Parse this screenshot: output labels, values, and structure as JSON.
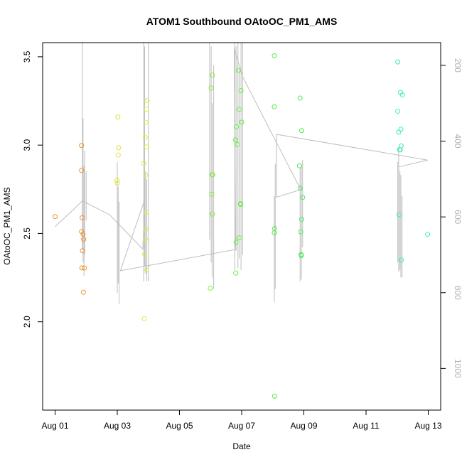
{
  "chart_data": {
    "type": "scatter",
    "title": "ATOM1 Southbound OAtoOC_PM1_AMS",
    "xlabel": "Date",
    "ylabel": "OAtoOC_PM1_AMS",
    "x_ticks": [
      "Aug 01",
      "Aug 03",
      "Aug 05",
      "Aug 07",
      "Aug 09",
      "Aug 11",
      "Aug 13"
    ],
    "y_ticks": [
      "2.0",
      "2.5",
      "3.0",
      "3.5"
    ],
    "y2_ticks": [
      "200",
      "400",
      "600",
      "800",
      "1000"
    ],
    "xlim_days": [
      0.6,
      13.4
    ],
    "ylim": [
      1.5,
      3.58
    ],
    "y2lim": [
      1110,
      140
    ],
    "grid": false,
    "legend": "none",
    "colors": {
      "line": "#bebebe",
      "right_axis": "#b0b0b0"
    },
    "points": [
      {
        "x": 1.0,
        "y": 2.595,
        "color": "#f08a30"
      },
      {
        "x": 1.85,
        "y": 2.998,
        "color": "#f0922f"
      },
      {
        "x": 1.85,
        "y": 2.857,
        "color": "#f0922f"
      },
      {
        "x": 1.87,
        "y": 2.589,
        "color": "#f0922f"
      },
      {
        "x": 1.85,
        "y": 2.511,
        "color": "#f0922f"
      },
      {
        "x": 1.9,
        "y": 2.497,
        "color": "#f0922f"
      },
      {
        "x": 1.92,
        "y": 2.467,
        "color": "#f0922f"
      },
      {
        "x": 1.88,
        "y": 2.402,
        "color": "#f0922f"
      },
      {
        "x": 1.86,
        "y": 2.305,
        "color": "#f0922f"
      },
      {
        "x": 1.94,
        "y": 2.304,
        "color": "#f0922f"
      },
      {
        "x": 1.91,
        "y": 2.167,
        "color": "#f0922f"
      },
      {
        "x": 3.02,
        "y": 3.159,
        "color": "#e0e040"
      },
      {
        "x": 3.04,
        "y": 2.985,
        "color": "#e0e040"
      },
      {
        "x": 3.03,
        "y": 2.944,
        "color": "#e0e040"
      },
      {
        "x": 2.99,
        "y": 2.801,
        "color": "#e0e040"
      },
      {
        "x": 3.0,
        "y": 2.785,
        "color": "#e0e040"
      },
      {
        "x": 3.96,
        "y": 3.252,
        "color": "#dcef45"
      },
      {
        "x": 3.94,
        "y": 3.203,
        "color": "#dcef45"
      },
      {
        "x": 3.92,
        "y": 3.129,
        "color": "#dcef45"
      },
      {
        "x": 3.9,
        "y": 3.044,
        "color": "#dcef45"
      },
      {
        "x": 3.95,
        "y": 2.99,
        "color": "#dcef45"
      },
      {
        "x": 3.85,
        "y": 2.896,
        "color": "#dcef45"
      },
      {
        "x": 3.91,
        "y": 2.832,
        "color": "#dcef45"
      },
      {
        "x": 3.93,
        "y": 2.619,
        "color": "#dcef45"
      },
      {
        "x": 3.92,
        "y": 2.525,
        "color": "#dcef45"
      },
      {
        "x": 3.9,
        "y": 2.467,
        "color": "#dcef45"
      },
      {
        "x": 3.88,
        "y": 2.383,
        "color": "#dcef45"
      },
      {
        "x": 3.94,
        "y": 2.293,
        "color": "#dcef45"
      },
      {
        "x": 3.87,
        "y": 2.018,
        "color": "#dcef45"
      },
      {
        "x": 6.06,
        "y": 3.396,
        "color": "#86ee38"
      },
      {
        "x": 6.02,
        "y": 3.323,
        "color": "#86ee38"
      },
      {
        "x": 6.05,
        "y": 2.833,
        "color": "#86ee38"
      },
      {
        "x": 6.07,
        "y": 2.832,
        "color": "#86ee38"
      },
      {
        "x": 6.04,
        "y": 2.722,
        "color": "#86ee38"
      },
      {
        "x": 6.06,
        "y": 2.61,
        "color": "#86ee38"
      },
      {
        "x": 5.99,
        "y": 2.19,
        "color": "#86ee38"
      },
      {
        "x": 6.9,
        "y": 3.423,
        "color": "#66ee3a"
      },
      {
        "x": 6.98,
        "y": 3.308,
        "color": "#66ee3a"
      },
      {
        "x": 6.92,
        "y": 3.202,
        "color": "#66ee3a"
      },
      {
        "x": 7.0,
        "y": 3.13,
        "color": "#66ee3a"
      },
      {
        "x": 6.83,
        "y": 3.104,
        "color": "#66ee3a"
      },
      {
        "x": 6.8,
        "y": 3.03,
        "color": "#66ee3a"
      },
      {
        "x": 6.86,
        "y": 3.003,
        "color": "#66ee3a"
      },
      {
        "x": 6.96,
        "y": 2.668,
        "color": "#66ee3a"
      },
      {
        "x": 6.97,
        "y": 2.664,
        "color": "#66ee3a"
      },
      {
        "x": 6.92,
        "y": 2.475,
        "color": "#66ee3a"
      },
      {
        "x": 6.82,
        "y": 2.45,
        "color": "#66ee3a"
      },
      {
        "x": 6.81,
        "y": 2.276,
        "color": "#66ee3a"
      },
      {
        "x": 8.05,
        "y": 3.506,
        "color": "#52ec44"
      },
      {
        "x": 8.05,
        "y": 3.217,
        "color": "#52ec44"
      },
      {
        "x": 8.06,
        "y": 2.528,
        "color": "#52ec44"
      },
      {
        "x": 8.05,
        "y": 2.504,
        "color": "#52ec44"
      },
      {
        "x": 8.06,
        "y": 1.579,
        "color": "#52ec44"
      },
      {
        "x": 8.88,
        "y": 3.266,
        "color": "#48ec55"
      },
      {
        "x": 8.93,
        "y": 3.082,
        "color": "#48ec55"
      },
      {
        "x": 8.86,
        "y": 2.883,
        "color": "#48ec55"
      },
      {
        "x": 8.88,
        "y": 2.756,
        "color": "#48ec55"
      },
      {
        "x": 8.96,
        "y": 2.704,
        "color": "#48ec55"
      },
      {
        "x": 8.93,
        "y": 2.58,
        "color": "#48ec55"
      },
      {
        "x": 8.9,
        "y": 2.509,
        "color": "#48ec55"
      },
      {
        "x": 8.91,
        "y": 2.38,
        "color": "#48ec55"
      },
      {
        "x": 8.92,
        "y": 2.375,
        "color": "#48ec55"
      },
      {
        "x": 12.02,
        "y": 3.471,
        "color": "#3aecc0"
      },
      {
        "x": 12.11,
        "y": 3.298,
        "color": "#3aecc0"
      },
      {
        "x": 12.17,
        "y": 3.284,
        "color": "#3aecc0"
      },
      {
        "x": 12.02,
        "y": 3.192,
        "color": "#3aecc0"
      },
      {
        "x": 12.12,
        "y": 3.09,
        "color": "#3aecc0"
      },
      {
        "x": 12.05,
        "y": 3.073,
        "color": "#3aecc0"
      },
      {
        "x": 12.13,
        "y": 2.996,
        "color": "#3aecc0"
      },
      {
        "x": 12.08,
        "y": 2.974,
        "color": "#3aecc0"
      },
      {
        "x": 12.1,
        "y": 2.973,
        "color": "#3aecc0"
      },
      {
        "x": 12.06,
        "y": 2.607,
        "color": "#3aecc0"
      },
      {
        "x": 12.13,
        "y": 2.35,
        "color": "#3aecc0"
      },
      {
        "x": 12.98,
        "y": 2.495,
        "color": "#3aecc0"
      }
    ],
    "track_line": [
      {
        "x": 1.0,
        "y2": 626
      },
      {
        "x": 1.88,
        "y2": 558
      },
      {
        "x": 2.75,
        "y2": 594
      },
      {
        "x": 3.82,
        "y2": 685
      },
      {
        "x": 3.88,
        "y2": 555
      },
      {
        "x": 3.1,
        "y2": 742
      },
      {
        "x": 6.8,
        "y2": 686
      },
      {
        "x": 6.76,
        "y2": 156
      },
      {
        "x": 7.05,
        "y2": 233
      },
      {
        "x": 8.9,
        "y2": 528
      },
      {
        "x": 8.12,
        "y2": 548
      },
      {
        "x": 8.12,
        "y2": 382
      },
      {
        "x": 12.98,
        "y2": 450
      },
      {
        "x": 12.05,
        "y2": 468
      }
    ],
    "track_spikes": [
      {
        "x": 1.88,
        "y2_top": 120,
        "y2_bottom": 685
      },
      {
        "x": 1.9,
        "y2_top": 340,
        "y2_bottom": 720
      },
      {
        "x": 1.93,
        "y2_top": 465,
        "y2_bottom": 755
      },
      {
        "x": 1.95,
        "y2_top": 425,
        "y2_bottom": 700
      },
      {
        "x": 2.0,
        "y2_top": 480,
        "y2_bottom": 610
      },
      {
        "x": 3.0,
        "y2_top": 455,
        "y2_bottom": 800
      },
      {
        "x": 3.03,
        "y2_top": 520,
        "y2_bottom": 775
      },
      {
        "x": 3.06,
        "y2_top": 560,
        "y2_bottom": 830
      },
      {
        "x": 3.85,
        "y2_top": 120,
        "y2_bottom": 770
      },
      {
        "x": 3.88,
        "y2_top": 150,
        "y2_bottom": 730
      },
      {
        "x": 3.91,
        "y2_top": 480,
        "y2_bottom": 750
      },
      {
        "x": 3.95,
        "y2_top": 500,
        "y2_bottom": 770
      },
      {
        "x": 4.0,
        "y2_top": 120,
        "y2_bottom": 770
      },
      {
        "x": 5.97,
        "y2_top": 120,
        "y2_bottom": 660
      },
      {
        "x": 6.02,
        "y2_top": 150,
        "y2_bottom": 720
      },
      {
        "x": 6.05,
        "y2_top": 300,
        "y2_bottom": 760
      },
      {
        "x": 6.1,
        "y2_top": 200,
        "y2_bottom": 790
      },
      {
        "x": 6.78,
        "y2_top": 120,
        "y2_bottom": 740
      },
      {
        "x": 6.82,
        "y2_top": 150,
        "y2_bottom": 690
      },
      {
        "x": 6.88,
        "y2_top": 120,
        "y2_bottom": 735
      },
      {
        "x": 6.92,
        "y2_top": 210,
        "y2_bottom": 710
      },
      {
        "x": 6.98,
        "y2_top": 120,
        "y2_bottom": 740
      },
      {
        "x": 7.03,
        "y2_top": 130,
        "y2_bottom": 700
      },
      {
        "x": 8.05,
        "y2_top": 545,
        "y2_bottom": 825
      },
      {
        "x": 8.08,
        "y2_top": 460,
        "y2_bottom": 790
      },
      {
        "x": 8.88,
        "y2_top": 470,
        "y2_bottom": 770
      },
      {
        "x": 8.92,
        "y2_top": 460,
        "y2_bottom": 765
      },
      {
        "x": 8.96,
        "y2_top": 450,
        "y2_bottom": 680
      },
      {
        "x": 12.02,
        "y2_top": 455,
        "y2_bottom": 720
      },
      {
        "x": 12.05,
        "y2_top": 415,
        "y2_bottom": 745
      },
      {
        "x": 12.09,
        "y2_top": 480,
        "y2_bottom": 740
      },
      {
        "x": 12.12,
        "y2_top": 490,
        "y2_bottom": 760
      },
      {
        "x": 12.16,
        "y2_top": 545,
        "y2_bottom": 760
      }
    ]
  }
}
